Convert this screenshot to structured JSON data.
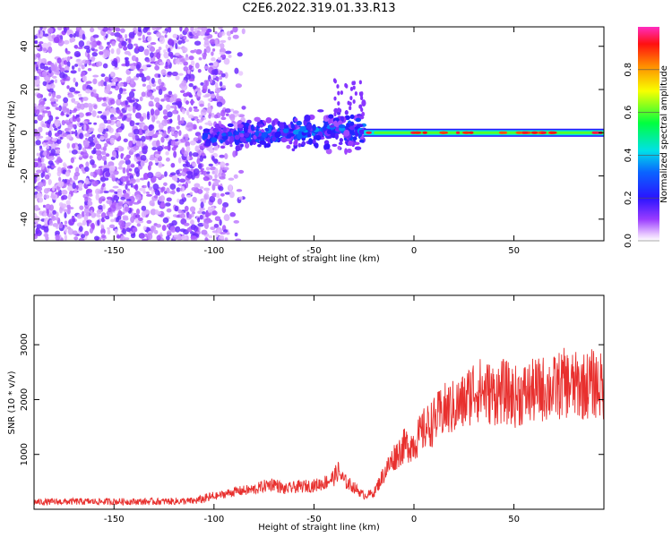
{
  "page_title": "C2E6.2022.319.01.33.R13",
  "colors": {
    "snr_line": "#e8302e",
    "axis": "#000000"
  },
  "chart_data": [
    {
      "type": "heatmap",
      "title": "C2E6.2022.319.01.33.R13",
      "xlabel": "Height of straight line (km)",
      "ylabel": "Frequency (Hz)",
      "xlim": [
        -190,
        95
      ],
      "ylim": [
        -50,
        49
      ],
      "xticks": [
        -150,
        -100,
        -50,
        0,
        50
      ],
      "yticks": [
        -40,
        -20,
        0,
        20,
        40
      ],
      "colorbar": {
        "label": "Normalized spectral amplitude",
        "range": [
          0.0,
          1.0
        ],
        "ticks": [
          0.0,
          0.2,
          0.4,
          0.6,
          0.8
        ],
        "colormap": "purple-blue-cyan-green-yellow-red-magenta"
      },
      "features": [
        {
          "region": "noise",
          "x_range": [
            -190,
            -85
          ],
          "freq_range": [
            -50,
            49
          ],
          "amplitude": 0.1
        },
        {
          "region": "rising_echo",
          "x_range": [
            -105,
            -25
          ],
          "freq_range": [
            -12,
            10
          ],
          "amplitude": 0.3
        },
        {
          "region": "steady_line",
          "x_range": [
            -25,
            95
          ],
          "freq_hz": 0,
          "amplitude": 0.6
        }
      ],
      "grid": false
    },
    {
      "type": "line",
      "xlabel": "Height of straight line (km)",
      "ylabel": "SNR (10 * v/v)",
      "xlim": [
        -190,
        95
      ],
      "ylim": [
        0,
        3900
      ],
      "xticks": [
        -150,
        -100,
        -50,
        0,
        50
      ],
      "yticks": [
        1000,
        2000,
        3000
      ],
      "series": [
        {
          "x": [
            -190,
            -170,
            -150,
            -130,
            -110,
            -100,
            -90,
            -80,
            -75,
            -70,
            -65,
            -60,
            -55,
            -50,
            -45,
            -40,
            -38,
            -35,
            -30,
            -25,
            -20,
            -15,
            -10,
            -5,
            0,
            5,
            10,
            15,
            20,
            25,
            30,
            35,
            40,
            45,
            50,
            55,
            60,
            65,
            70,
            75,
            80,
            85,
            90,
            93,
            95
          ],
          "y": [
            130,
            140,
            140,
            140,
            150,
            230,
            320,
            360,
            420,
            470,
            360,
            400,
            420,
            430,
            480,
            580,
            700,
            520,
            400,
            250,
            300,
            650,
            950,
            1150,
            1200,
            1450,
            1600,
            1800,
            1850,
            1950,
            2200,
            2150,
            2100,
            2150,
            2050,
            2100,
            2150,
            2200,
            2200,
            2300,
            2250,
            2250,
            2300,
            2250,
            2200
          ]
        }
      ],
      "grid": false
    }
  ]
}
